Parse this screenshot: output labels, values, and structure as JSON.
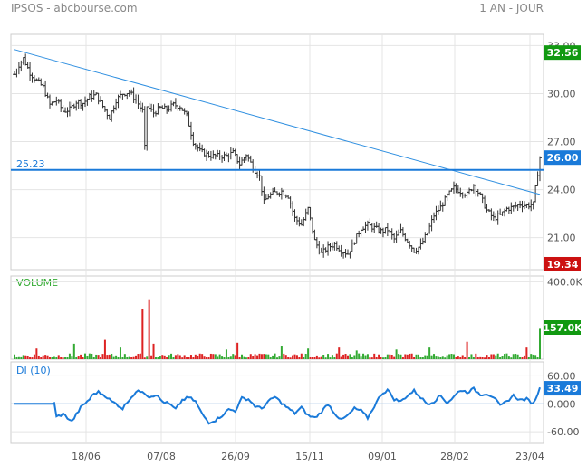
{
  "header": {
    "title": "IPSOS - abcbourse.com",
    "period": "1 AN - JOUR"
  },
  "colors": {
    "up": "#33aa33",
    "down": "#dd2222",
    "line": "#1a7ad9",
    "trend": "#2f8fe0",
    "grid": "#e4e4e4",
    "badge_last": "#119911",
    "badge_low": "#cc1111",
    "badge_blue": "#1a7ad9"
  },
  "chart_data": [
    {
      "type": "bar",
      "panel": "price",
      "style": "ohlc",
      "ylim": [
        19.0,
        33.7
      ],
      "yticks": [
        "33.00",
        "30.00",
        "27.00",
        "24.00",
        "21.00"
      ],
      "ytick_values": [
        33,
        30,
        27,
        24,
        21
      ],
      "xticks": [
        "18/06",
        "07/08",
        "26/09",
        "15/11",
        "09/01",
        "28/02",
        "23/04"
      ],
      "anchors": [
        [
          0,
          31.2
        ],
        [
          2,
          31.8
        ],
        [
          4,
          32.2
        ],
        [
          7,
          31.3
        ],
        [
          10,
          30.8
        ],
        [
          13,
          30.4
        ],
        [
          16,
          29.3
        ],
        [
          19,
          29.6
        ],
        [
          22,
          28.9
        ],
        [
          25,
          29.0
        ],
        [
          28,
          29.5
        ],
        [
          31,
          29.4
        ],
        [
          34,
          29.8
        ],
        [
          37,
          29.9
        ],
        [
          40,
          29.2
        ],
        [
          43,
          28.5
        ],
        [
          46,
          29.6
        ],
        [
          49,
          30.0
        ],
        [
          52,
          30.1
        ],
        [
          55,
          29.6
        ],
        [
          58,
          28.9
        ],
        [
          59,
          26.6
        ],
        [
          60,
          29.2
        ],
        [
          63,
          28.8
        ],
        [
          66,
          29.1
        ],
        [
          69,
          29.0
        ],
        [
          72,
          29.3
        ],
        [
          75,
          29.2
        ],
        [
          78,
          28.6
        ],
        [
          81,
          27.0
        ],
        [
          84,
          26.4
        ],
        [
          87,
          26.2
        ],
        [
          90,
          26.1
        ],
        [
          93,
          26.1
        ],
        [
          96,
          26.1
        ],
        [
          99,
          26.3
        ],
        [
          102,
          25.6
        ],
        [
          105,
          26.2
        ],
        [
          108,
          25.4
        ],
        [
          111,
          24.8
        ],
        [
          113,
          23.2
        ],
        [
          115,
          23.6
        ],
        [
          118,
          23.8
        ],
        [
          121,
          23.9
        ],
        [
          124,
          23.6
        ],
        [
          127,
          22.2
        ],
        [
          130,
          21.8
        ],
        [
          133,
          22.8
        ],
        [
          136,
          20.8
        ],
        [
          139,
          20.0
        ],
        [
          142,
          20.4
        ],
        [
          145,
          20.6
        ],
        [
          148,
          20.2
        ],
        [
          151,
          20.0
        ],
        [
          154,
          20.8
        ],
        [
          157,
          21.6
        ],
        [
          160,
          21.8
        ],
        [
          163,
          21.6
        ],
        [
          166,
          21.4
        ],
        [
          169,
          21.5
        ],
        [
          172,
          20.9
        ],
        [
          175,
          21.4
        ],
        [
          178,
          20.8
        ],
        [
          181,
          20.2
        ],
        [
          184,
          20.5
        ],
        [
          187,
          21.3
        ],
        [
          190,
          22.4
        ],
        [
          193,
          22.9
        ],
        [
          196,
          23.6
        ],
        [
          199,
          24.1
        ],
        [
          202,
          23.9
        ],
        [
          205,
          23.7
        ],
        [
          208,
          24.3
        ],
        [
          211,
          23.6
        ],
        [
          214,
          22.7
        ],
        [
          217,
          22.2
        ],
        [
          220,
          22.4
        ],
        [
          223,
          22.8
        ],
        [
          226,
          22.9
        ],
        [
          229,
          23.1
        ],
        [
          232,
          23.0
        ],
        [
          235,
          23.1
        ],
        [
          238,
          26.0
        ]
      ],
      "last": 32.56,
      "current": 26.0,
      "low": 19.34,
      "last_label": "32.56",
      "current_label": "26.00",
      "low_label": "19.34",
      "hline": 25.23,
      "hline_label": "25.23",
      "trendline": [
        [
          0,
          32.75
        ],
        [
          238,
          23.7
        ]
      ]
    },
    {
      "type": "bar",
      "panel": "volume",
      "title": "VOLUME",
      "ylim": [
        0,
        430000
      ],
      "yticks": [
        "400.0K"
      ],
      "ytick_values": [
        400000
      ],
      "spikes": [
        [
          10,
          55000
        ],
        [
          27,
          80000
        ],
        [
          41,
          100000
        ],
        [
          48,
          60000
        ],
        [
          58,
          260000
        ],
        [
          61,
          310000
        ],
        [
          63,
          80000
        ],
        [
          96,
          50000
        ],
        [
          101,
          85000
        ],
        [
          121,
          70000
        ],
        [
          133,
          55000
        ],
        [
          147,
          60000
        ],
        [
          155,
          45000
        ],
        [
          173,
          50000
        ],
        [
          188,
          60000
        ],
        [
          205,
          90000
        ],
        [
          232,
          60000
        ],
        [
          238,
          157000
        ]
      ],
      "last_label": "157.0K"
    },
    {
      "type": "line",
      "panel": "di",
      "title": "DI (10)",
      "ylim": [
        -85,
        90
      ],
      "yticks": [
        "60.00",
        "0.000",
        "-60.00"
      ],
      "ytick_values": [
        60,
        0,
        -60
      ],
      "anchors": [
        [
          0,
          0
        ],
        [
          10,
          0
        ],
        [
          18,
          0
        ],
        [
          19,
          -28
        ],
        [
          22,
          -22
        ],
        [
          26,
          -38
        ],
        [
          30,
          -8
        ],
        [
          34,
          10
        ],
        [
          36,
          22
        ],
        [
          38,
          25
        ],
        [
          41,
          18
        ],
        [
          44,
          5
        ],
        [
          46,
          0
        ],
        [
          49,
          -10
        ],
        [
          52,
          10
        ],
        [
          55,
          25
        ],
        [
          58,
          28
        ],
        [
          61,
          15
        ],
        [
          64,
          20
        ],
        [
          67,
          5
        ],
        [
          70,
          0
        ],
        [
          73,
          -12
        ],
        [
          76,
          8
        ],
        [
          79,
          14
        ],
        [
          82,
          5
        ],
        [
          85,
          -22
        ],
        [
          88,
          -40
        ],
        [
          91,
          -35
        ],
        [
          94,
          -25
        ],
        [
          97,
          -12
        ],
        [
          100,
          -15
        ],
        [
          103,
          12
        ],
        [
          106,
          10
        ],
        [
          109,
          -5
        ],
        [
          112,
          -10
        ],
        [
          115,
          5
        ],
        [
          118,
          15
        ],
        [
          121,
          2
        ],
        [
          124,
          -10
        ],
        [
          127,
          -20
        ],
        [
          130,
          -8
        ],
        [
          133,
          -25
        ],
        [
          136,
          -30
        ],
        [
          139,
          -18
        ],
        [
          142,
          0
        ],
        [
          145,
          -20
        ],
        [
          148,
          -35
        ],
        [
          151,
          -25
        ],
        [
          154,
          -10
        ],
        [
          157,
          -15
        ],
        [
          160,
          -30
        ],
        [
          163,
          -5
        ],
        [
          166,
          20
        ],
        [
          169,
          30
        ],
        [
          172,
          10
        ],
        [
          175,
          5
        ],
        [
          178,
          18
        ],
        [
          181,
          28
        ],
        [
          184,
          14
        ],
        [
          187,
          0
        ],
        [
          190,
          5
        ],
        [
          193,
          18
        ],
        [
          196,
          2
        ],
        [
          199,
          15
        ],
        [
          202,
          30
        ],
        [
          205,
          25
        ],
        [
          208,
          32
        ],
        [
          211,
          20
        ],
        [
          214,
          22
        ],
        [
          217,
          15
        ],
        [
          220,
          -5
        ],
        [
          223,
          5
        ],
        [
          226,
          18
        ],
        [
          229,
          8
        ],
        [
          232,
          10
        ],
        [
          235,
          0
        ],
        [
          238,
          33.49
        ]
      ],
      "last_label": "33.49"
    }
  ]
}
